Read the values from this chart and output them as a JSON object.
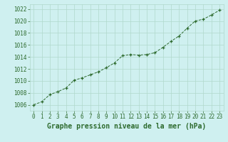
{
  "x": [
    0,
    1,
    2,
    3,
    4,
    5,
    6,
    7,
    8,
    9,
    10,
    11,
    12,
    13,
    14,
    15,
    16,
    17,
    18,
    19,
    20,
    21,
    22,
    23
  ],
  "y": [
    1006.0,
    1006.5,
    1007.7,
    1008.2,
    1008.8,
    1010.1,
    1010.5,
    1011.0,
    1011.5,
    1012.2,
    1013.0,
    1014.2,
    1014.4,
    1014.3,
    1014.4,
    1014.7,
    1015.6,
    1016.6,
    1017.5,
    1018.8,
    1020.0,
    1020.3,
    1021.0,
    1021.8
  ],
  "line_color": "#2d6a2d",
  "marker": "+",
  "marker_size": 3,
  "bg_color": "#cff0f0",
  "grid_color": "#b0d8cc",
  "xlabel": "Graphe pression niveau de la mer (hPa)",
  "xlabel_fontsize": 7,
  "ytick_labels": [
    "1006",
    "1008",
    "1010",
    "1012",
    "1014",
    "1016",
    "1018",
    "1020",
    "1022"
  ],
  "ytick_values": [
    1006,
    1008,
    1010,
    1012,
    1014,
    1016,
    1018,
    1020,
    1022
  ],
  "ylim": [
    1005.0,
    1022.8
  ],
  "xlim": [
    -0.5,
    23.5
  ],
  "xtick_labels": [
    "0",
    "1",
    "2",
    "3",
    "4",
    "5",
    "6",
    "7",
    "8",
    "9",
    "10",
    "11",
    "12",
    "13",
    "14",
    "15",
    "16",
    "17",
    "18",
    "19",
    "20",
    "21",
    "22",
    "23"
  ],
  "tick_fontsize": 5.5,
  "tick_color": "#2d6a2d",
  "label_color": "#2d6a2d",
  "linewidth": 0.7,
  "markeredgewidth": 0.9
}
